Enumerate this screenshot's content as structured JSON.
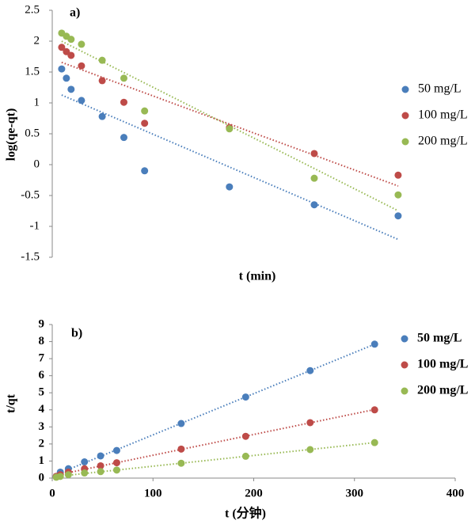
{
  "chart_data": [
    {
      "type": "scatter",
      "title": "a)",
      "x_label": "t (min)",
      "y_label": "log(qe-qt)",
      "x": [
        10,
        15,
        20,
        31,
        53,
        76,
        98,
        188,
        278,
        367
      ],
      "xlim": [
        0,
        420
      ],
      "ylim": [
        -1.5,
        2.5
      ],
      "yticks": [
        -1.5,
        -1,
        -0.5,
        0,
        0.5,
        1,
        1.5,
        2,
        2.5
      ],
      "trendline": true,
      "legend": "right",
      "series": [
        {
          "name": "50 mg/L",
          "color": "#4a7ebb",
          "values": [
            1.55,
            1.4,
            1.22,
            1.04,
            0.78,
            0.44,
            -0.1,
            -0.36,
            -0.65,
            -0.83
          ]
        },
        {
          "name": "100 mg/L",
          "color": "#be4b48",
          "values": [
            1.9,
            1.83,
            1.77,
            1.6,
            1.36,
            1.01,
            0.67,
            0.6,
            0.18,
            -0.17
          ]
        },
        {
          "name": "200 mg/L",
          "color": "#98b954",
          "values": [
            2.13,
            2.08,
            2.03,
            1.95,
            1.69,
            1.4,
            0.87,
            0.58,
            -0.22,
            -0.49
          ]
        }
      ]
    },
    {
      "type": "scatter",
      "title": "b)",
      "x_label": "t (分钟)",
      "y_label": "t/qt",
      "x": [
        4,
        8,
        16,
        32,
        48,
        64,
        128,
        192,
        256,
        320
      ],
      "xlim": [
        0,
        400
      ],
      "xticks": [
        0,
        100,
        200,
        300,
        400
      ],
      "ylim": [
        0,
        9
      ],
      "yticks": [
        0,
        1,
        2,
        3,
        4,
        5,
        6,
        7,
        8,
        9
      ],
      "trendline": true,
      "legend": "right",
      "series": [
        {
          "name": "50 mg/L",
          "color": "#4a7ebb",
          "values": [
            0.1,
            0.35,
            0.55,
            0.95,
            1.3,
            1.62,
            3.2,
            4.75,
            6.3,
            7.85
          ]
        },
        {
          "name": "100 mg/L",
          "color": "#be4b48",
          "values": [
            0.1,
            0.2,
            0.35,
            0.55,
            0.72,
            0.9,
            1.7,
            2.45,
            3.25,
            4.0
          ]
        },
        {
          "name": "200 mg/L",
          "color": "#98b954",
          "values": [
            0.05,
            0.1,
            0.2,
            0.3,
            0.38,
            0.47,
            0.87,
            1.28,
            1.67,
            2.08
          ]
        }
      ]
    }
  ]
}
